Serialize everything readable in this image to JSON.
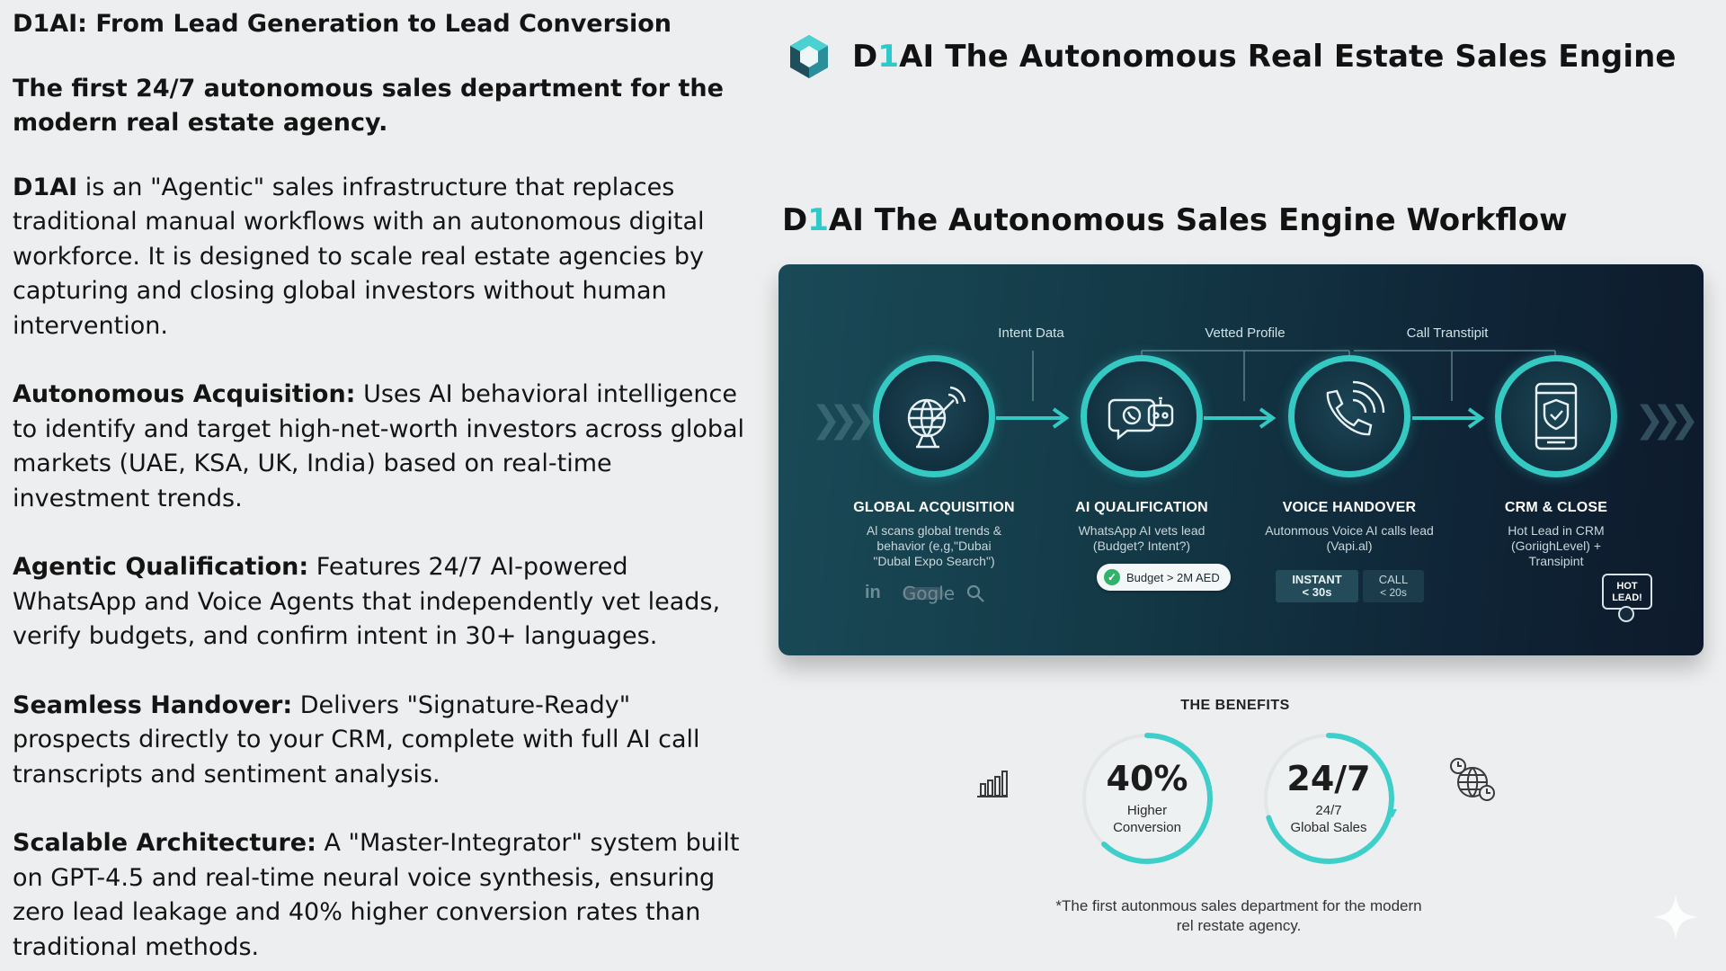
{
  "left": {
    "title": "D1AI: From Lead Generation to Lead Conversion",
    "tagline": "The first 24/7 autonomous sales department for the modern real estate agency.",
    "intro_bold": "D1AI",
    "intro_text": " is an \"Agentic\" sales infrastructure that replaces traditional manual workflows with an autonomous digital workforce. It is designed to scale real estate agencies by capturing and closing global investors without human intervention.",
    "sections": [
      {
        "heading": "Autonomous Acquisition:",
        "text": " Uses AI behavioral intelligence to identify and target high-net-worth investors across global markets (UAE, KSA, UK, India) based on real-time investment trends."
      },
      {
        "heading": "Agentic Qualification:",
        "text": " Features 24/7 AI-powered WhatsApp and Voice Agents that independently vet leads, verify budgets, and confirm intent in 30+ languages."
      },
      {
        "heading": "Seamless Handover:",
        "text": " Delivers \"Signature-Ready\" prospects directly to your CRM, complete with full AI call transcripts and sentiment analysis."
      },
      {
        "heading": "Scalable Architecture:",
        "text": " A \"Master-Integrator\" system built on GPT-4.5 and real-time neural voice synthesis, ensuring zero lead leakage and 40% higher conversion rates than traditional methods."
      }
    ]
  },
  "brand": {
    "title_d": "D",
    "title_1": "1",
    "title_rest": "AI The Autonomous Real Estate Sales Engine",
    "logo_icon": "hexagon-cube-logo"
  },
  "workflow": {
    "heading_d": "D",
    "heading_1": "1",
    "heading_rest": "AI The Autonomous Sales Engine Workflow",
    "connector_labels": [
      "Intent Data",
      "Vetted Profile",
      "Call Transtipit"
    ],
    "steps": [
      {
        "title": "GLOBAL ACQUISITION",
        "desc": "Al scans global trends & behavior (e,g,\"Dubai \"Dubal Expo Search\")",
        "icon": "satellite-dish-icon"
      },
      {
        "title": "AI QUALIFICATION",
        "desc": "WhatsApp AI vets lead (Budget? Intent?)",
        "icon": "chat-bot-icon"
      },
      {
        "title": "VOICE HANDOVER",
        "desc": "Autonmous Voice AI calls lead (Vapi.al)",
        "icon": "phone-call-icon"
      },
      {
        "title": "CRM & CLOSE",
        "desc": "Hot Lead in CRM (GoriighLevel) + Transipint",
        "icon": "shield-tablet-icon"
      }
    ],
    "google_text": "Gogle",
    "budget_pill": "Budget > 2M AED",
    "instant_tag": {
      "line1": "INSTANT",
      "line2": "< 30s"
    },
    "call_tag": {
      "line1": "CALL",
      "line2": "< 20s"
    },
    "hot_lead": {
      "line1": "HOT",
      "line2": "LEAD!"
    },
    "accent_color": "#35c9c3"
  },
  "benefits": {
    "label": "THE BENEFITS",
    "stats": [
      {
        "big": "40%",
        "line1": "Higher",
        "line2": "Conversion",
        "ring_fill": 0.62
      },
      {
        "big": "24/7",
        "line1": "24/7",
        "line2": "Global Sales",
        "ring_fill": 0.7
      }
    ],
    "footnote": "*The first autonmous sales department for the modern rel restate agency."
  }
}
